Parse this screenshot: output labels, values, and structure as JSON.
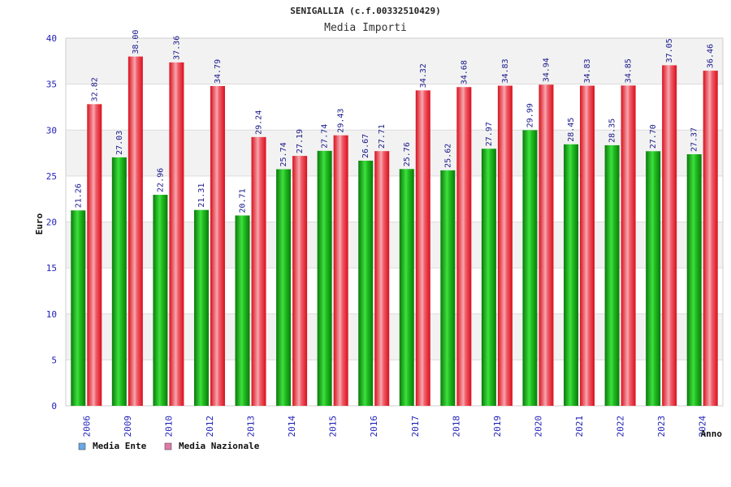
{
  "chart_data": {
    "type": "bar",
    "title": "SENIGALLIA (c.f.00332510429)",
    "subtitle": "Media Importi",
    "xlabel": "Anno",
    "ylabel": "Euro",
    "ylim": [
      0,
      40
    ],
    "yticks": [
      0,
      5,
      10,
      15,
      20,
      25,
      30,
      35,
      40
    ],
    "categories": [
      "2006",
      "2009",
      "2010",
      "2012",
      "2013",
      "2014",
      "2015",
      "2016",
      "2017",
      "2018",
      "2019",
      "2020",
      "2021",
      "2022",
      "2023",
      "2024"
    ],
    "series": [
      {
        "name": "Media Ente",
        "color": "#1faa1f",
        "legend_color": "#6aa8e8",
        "values": [
          21.26,
          27.03,
          22.96,
          21.31,
          20.71,
          25.74,
          27.74,
          26.67,
          25.76,
          25.62,
          27.97,
          29.99,
          28.45,
          28.35,
          27.7,
          27.37
        ]
      },
      {
        "name": "Media Nazionale",
        "color": "#e0202c",
        "legend_color": "#e07aa8",
        "values": [
          32.82,
          38.0,
          37.36,
          34.79,
          29.24,
          27.19,
          29.43,
          27.71,
          34.32,
          34.68,
          34.83,
          34.94,
          34.83,
          34.85,
          37.05,
          36.46
        ]
      }
    ],
    "legend": "bottom-left",
    "grid": true
  }
}
